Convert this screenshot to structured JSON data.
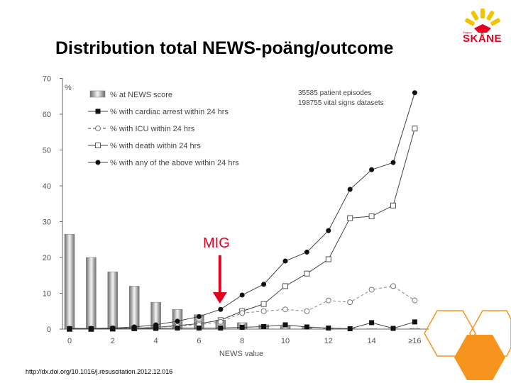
{
  "slide": {
    "title": "Distribution total NEWS-poäng/outcome",
    "source": "http://dx.doi.org/10.1016/j.resuscitation.2012.12.016",
    "annotation": "MIG",
    "logo": {
      "text": "SKÅNE",
      "subtext": "Region",
      "color": "#e5001e",
      "accent": "#f2c300"
    },
    "hex_color": "#f7941d"
  },
  "chart_data": {
    "type": "bar",
    "ylabel": "%",
    "xlabel": "NEWS value",
    "ylim": [
      0,
      70
    ],
    "yticks": [
      0,
      10,
      20,
      30,
      40,
      50,
      60,
      70
    ],
    "x": [
      0,
      1,
      2,
      3,
      4,
      5,
      6,
      7,
      8,
      9,
      10,
      11,
      12,
      13,
      14,
      15,
      16
    ],
    "xtick_labels": [
      "0",
      "",
      "2",
      "",
      "4",
      "",
      "6",
      "",
      "8",
      "",
      "10",
      "",
      "12",
      "",
      "14",
      "",
      "≥16"
    ],
    "annotation_text": [
      "35585 patient episodes",
      "198755 vital signs datasets"
    ],
    "annotation_at_x": 7,
    "series": [
      {
        "name": "% at NEWS score",
        "kind": "bar",
        "values": [
          26.5,
          20,
          16,
          12,
          7.5,
          5.5,
          4,
          2.5,
          1.8,
          1.2,
          0.8,
          0.5,
          0.3,
          0.2,
          0.1,
          0.1,
          0.2
        ]
      },
      {
        "name": "% with cardiac arrest within 24 hrs",
        "kind": "line",
        "marker": "filled-square",
        "dash": "solid",
        "values": [
          0.1,
          0.1,
          0.1,
          0.2,
          0.2,
          0.3,
          0.3,
          0.3,
          0.5,
          0.7,
          1.2,
          0.6,
          0.3,
          0.1,
          1.8,
          0.2,
          2
        ]
      },
      {
        "name": "% with ICU within 24 hrs",
        "kind": "line",
        "marker": "open-circle",
        "dash": "dashed",
        "values": [
          0.1,
          0.1,
          0.2,
          0.3,
          0.5,
          0.8,
          1.2,
          2,
          4.5,
          5,
          5.5,
          5,
          8,
          7.5,
          11,
          12,
          8
        ]
      },
      {
        "name": "% with death within 24 hrs",
        "kind": "line",
        "marker": "open-square",
        "dash": "solid",
        "values": [
          0,
          0,
          0.1,
          0.2,
          0.5,
          1,
          1.5,
          2.5,
          5,
          7,
          12,
          15.5,
          19.5,
          31,
          31.5,
          34.5,
          56
        ]
      },
      {
        "name": "% with any of the above within 24 hrs",
        "kind": "line",
        "marker": "filled-circle",
        "dash": "solid",
        "values": [
          0.2,
          0.2,
          0.3,
          0.6,
          1.2,
          2.2,
          3.5,
          5.5,
          9.5,
          12.5,
          19,
          21.5,
          27.5,
          39,
          44.5,
          46.5,
          66
        ]
      }
    ]
  }
}
